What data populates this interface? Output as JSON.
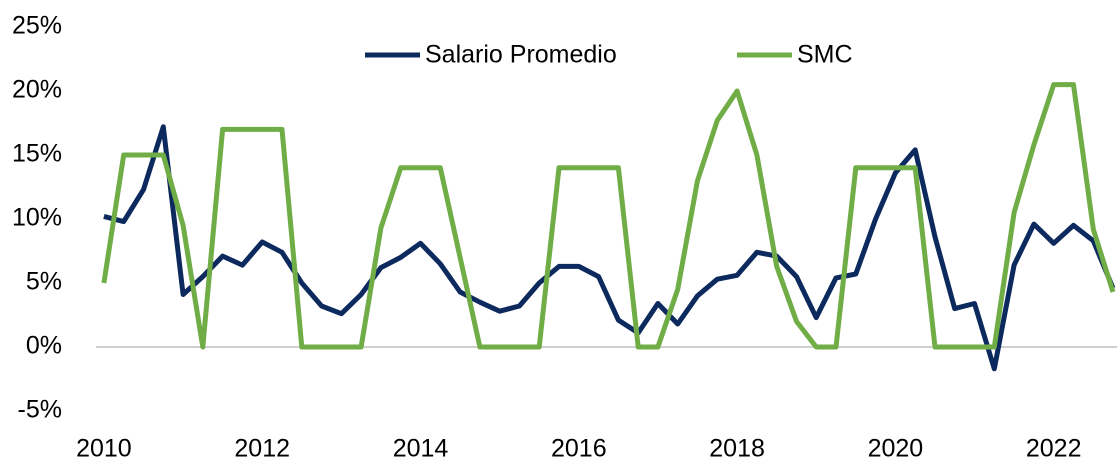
{
  "chart_data": {
    "type": "line",
    "x": [
      2010,
      2010.25,
      2010.5,
      2010.75,
      2011,
      2011.25,
      2011.5,
      2011.75,
      2012,
      2012.25,
      2012.5,
      2012.75,
      2013,
      2013.25,
      2013.5,
      2013.75,
      2014,
      2014.25,
      2014.5,
      2014.75,
      2015,
      2015.25,
      2015.5,
      2015.75,
      2016,
      2016.25,
      2016.5,
      2016.75,
      2017,
      2017.25,
      2017.5,
      2017.75,
      2018,
      2018.25,
      2018.5,
      2018.75,
      2019,
      2019.25,
      2019.5,
      2019.75,
      2020,
      2020.25,
      2020.5,
      2020.75,
      2021,
      2021.25,
      2021.5,
      2021.75,
      2022,
      2022.25,
      2022.5,
      2022.75
    ],
    "series": [
      {
        "name": "Salario Promedio",
        "color": "#0d2a5e",
        "values": [
          10.2,
          9.8,
          12.3,
          17.2,
          4.1,
          5.5,
          7.1,
          6.4,
          8.2,
          7.4,
          5.0,
          3.2,
          2.6,
          4.1,
          6.2,
          7.0,
          8.1,
          6.5,
          4.3,
          3.5,
          2.8,
          3.2,
          5.0,
          6.3,
          6.3,
          5.5,
          2.1,
          1.1,
          3.4,
          1.8,
          4.0,
          5.3,
          5.6,
          7.4,
          7.1,
          5.5,
          2.3,
          5.4,
          5.7,
          10.0,
          13.6,
          15.4,
          8.6,
          3.0,
          3.4,
          -1.7,
          6.4,
          9.6,
          8.1,
          9.5,
          8.3,
          4.6
        ]
      },
      {
        "name": "SMC",
        "color": "#70ad47",
        "values": [
          5.0,
          15.0,
          15.0,
          15.0,
          9.5,
          0,
          17.0,
          17.0,
          17.0,
          17.0,
          0,
          0,
          0,
          0,
          9.3,
          14.0,
          14.0,
          14.0,
          7.0,
          0,
          0,
          0,
          0,
          14.0,
          14.0,
          14.0,
          14.0,
          0,
          0,
          4.5,
          13.0,
          17.7,
          20.0,
          15.0,
          6.3,
          2.0,
          0,
          0,
          14.0,
          14.0,
          14.0,
          14.0,
          0,
          0,
          0,
          0,
          10.5,
          15.8,
          20.5,
          20.5,
          9.2,
          4.3
        ]
      }
    ],
    "xlim": [
      2009.9,
      2022.8
    ],
    "xticks": [
      2010,
      2012,
      2014,
      2016,
      2018,
      2020,
      2022
    ],
    "ylim": [
      -5,
      25
    ],
    "yticks": [
      {
        "value": -5,
        "label": "-5%"
      },
      {
        "value": 0,
        "label": "0%"
      },
      {
        "value": 5,
        "label": "5%"
      },
      {
        "value": 10,
        "label": "10%"
      },
      {
        "value": 15,
        "label": "15%"
      },
      {
        "value": 20,
        "label": "20%"
      },
      {
        "value": 25,
        "label": "25%"
      }
    ],
    "legend": "top"
  }
}
